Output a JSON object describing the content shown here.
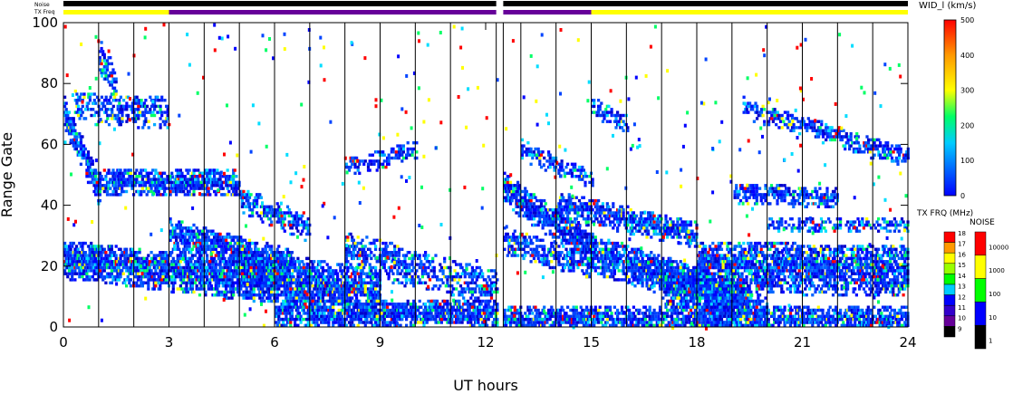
{
  "chart_data": {
    "type": "heatmap",
    "xlabel": "UT hours",
    "ylabel": "Range Gate",
    "xlim": [
      0,
      24
    ],
    "ylim": [
      0,
      100
    ],
    "xticks": [
      "0",
      "3",
      "6",
      "9",
      "12",
      "15",
      "18",
      "21",
      "24"
    ],
    "yticks": [
      "0",
      "20",
      "40",
      "60",
      "80",
      "100"
    ],
    "status_bars": {
      "noise_label": "Noise",
      "txfreq_label": "TX Freq",
      "noise_segments": [
        {
          "start": 0,
          "end": 12.3,
          "color": "#000000"
        },
        {
          "start": 12.5,
          "end": 24,
          "color": "#000000"
        }
      ],
      "txfreq_segments": [
        {
          "start": 0,
          "end": 3.0,
          "color": "#ffff00"
        },
        {
          "start": 3.0,
          "end": 12.3,
          "color": "#660099"
        },
        {
          "start": 12.5,
          "end": 15.0,
          "color": "#660099"
        },
        {
          "start": 15.0,
          "end": 24,
          "color": "#ffff00"
        }
      ]
    },
    "scan_lines_hours": [
      1.0,
      2.0,
      3.0,
      4.0,
      5.0,
      6.0,
      7.0,
      8.0,
      9.0,
      10.0,
      11.0,
      12.3,
      12.5,
      13.0,
      14.0,
      15.0,
      16.0,
      17.0,
      18.0,
      19.0,
      20.0,
      21.0,
      22.0,
      23.0
    ],
    "scatter_bands": [
      {
        "t0": 0.0,
        "t1": 1.0,
        "g0": 70,
        "g1": 44,
        "width": 5,
        "density": 0.85
      },
      {
        "t0": 1.0,
        "t1": 5.0,
        "g0": 47,
        "g1": 47,
        "width": 4,
        "density": 0.8
      },
      {
        "t0": 0.3,
        "t1": 3.0,
        "g0": 72,
        "g1": 70,
        "width": 5,
        "density": 0.5
      },
      {
        "t0": 1.0,
        "t1": 1.5,
        "g0": 88,
        "g1": 78,
        "width": 6,
        "density": 0.6
      },
      {
        "t0": 0.0,
        "t1": 6.0,
        "g0": 22,
        "g1": 14,
        "width": 6,
        "density": 0.85
      },
      {
        "t0": 3.0,
        "t1": 6.5,
        "g0": 30,
        "g1": 20,
        "width": 5,
        "density": 0.8
      },
      {
        "t0": 5.0,
        "t1": 9.0,
        "g0": 18,
        "g1": 10,
        "width": 8,
        "density": 0.8
      },
      {
        "t0": 5.0,
        "t1": 7.0,
        "g0": 42,
        "g1": 32,
        "width": 4,
        "density": 0.6
      },
      {
        "t0": 6.0,
        "t1": 12.3,
        "g0": 4,
        "g1": 4,
        "width": 4,
        "density": 0.8
      },
      {
        "t0": 8.0,
        "t1": 12.3,
        "g0": 25,
        "g1": 12,
        "width": 6,
        "density": 0.5
      },
      {
        "t0": 8.0,
        "t1": 10.0,
        "g0": 52,
        "g1": 58,
        "width": 3,
        "density": 0.45
      },
      {
        "t0": 12.5,
        "t1": 15.0,
        "g0": 45,
        "g1": 25,
        "width": 5,
        "density": 0.85
      },
      {
        "t0": 13.0,
        "t1": 15.0,
        "g0": 58,
        "g1": 48,
        "width": 3,
        "density": 0.5
      },
      {
        "t0": 12.5,
        "t1": 15.0,
        "g0": 28,
        "g1": 20,
        "width": 4,
        "density": 0.6
      },
      {
        "t0": 14.0,
        "t1": 18.0,
        "g0": 40,
        "g1": 30,
        "width": 4,
        "density": 0.75
      },
      {
        "t0": 15.0,
        "t1": 19.5,
        "g0": 24,
        "g1": 8,
        "width": 6,
        "density": 0.85
      },
      {
        "t0": 17.0,
        "t1": 20.0,
        "g0": 15,
        "g1": 2,
        "width": 7,
        "density": 0.8
      },
      {
        "t0": 12.5,
        "t1": 24.0,
        "g0": 2,
        "g1": 2,
        "width": 4,
        "density": 0.75
      },
      {
        "t0": 18.0,
        "t1": 24.0,
        "g0": 20,
        "g1": 18,
        "width": 8,
        "density": 0.8
      },
      {
        "t0": 19.0,
        "t1": 22.0,
        "g0": 44,
        "g1": 42,
        "width": 3,
        "density": 0.6
      },
      {
        "t0": 19.3,
        "t1": 24.0,
        "g0": 72,
        "g1": 55,
        "width": 3,
        "density": 0.6
      },
      {
        "t0": 15.0,
        "t1": 16.0,
        "g0": 72,
        "g1": 66,
        "width": 3,
        "density": 0.5
      },
      {
        "t0": 20.0,
        "t1": 24.0,
        "g0": 33,
        "g1": 33,
        "width": 2,
        "density": 0.5
      }
    ],
    "colorbars": [
      {
        "title": "WID_l (km/s)",
        "ticks": [
          "500",
          "400",
          "300",
          "200",
          "100",
          "0"
        ],
        "gradient": [
          "#0033ff",
          "#00ccff",
          "#00ff00",
          "#ffff00",
          "#ff9900",
          "#ff0000"
        ]
      },
      {
        "title": "TX FRQ (MHz)",
        "ticks": [
          "18",
          "17",
          "16",
          "15",
          "14",
          "13",
          "12",
          "11",
          "10",
          "9"
        ],
        "colors": [
          "#000000",
          "#660099",
          "#3300cc",
          "#0000ff",
          "#00ccff",
          "#00ff00",
          "#99ff00",
          "#ffff00",
          "#ff9900",
          "#ff0000"
        ]
      },
      {
        "title": "NOISE",
        "ticks": [
          "10000",
          "1000",
          "100",
          "10",
          "1"
        ],
        "colors": [
          "#000000",
          "#0000ff",
          "#00ff00",
          "#ffff00",
          "#ff0000"
        ]
      }
    ]
  }
}
